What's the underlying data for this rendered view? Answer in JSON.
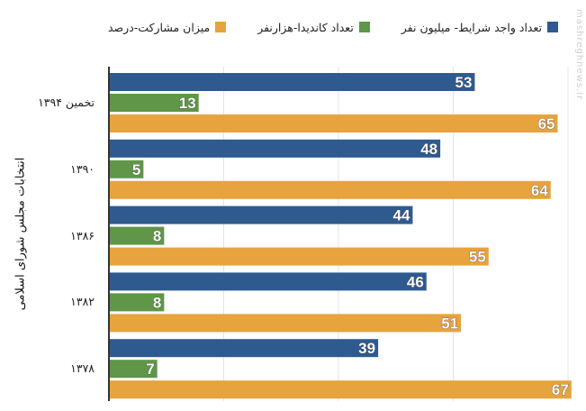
{
  "chart_data": {
    "type": "bar",
    "orientation": "horizontal",
    "title": "",
    "ylabel": "انتخابات مجلس شورای اسلامی",
    "xlabel": "",
    "categories": [
      "تخمین ۱۳۹۴",
      "۱۳۹۰",
      "۱۳۸۶",
      "۱۳۸۲",
      "۱۳۷۸"
    ],
    "series": [
      {
        "name": "تعداد واجد شرایط- میلیون نفر",
        "color": "#2f5a8f",
        "values": [
          53,
          48,
          44,
          46,
          39
        ]
      },
      {
        "name": "تعداد کاندیدا-هزارنفر",
        "color": "#5f9648",
        "values": [
          13,
          5,
          8,
          8,
          7
        ]
      },
      {
        "name": "میزان مشارکت-درصد",
        "color": "#e6a33e",
        "values": [
          65,
          64,
          55,
          51,
          67
        ]
      }
    ],
    "xlim": [
      0,
      66.5
    ],
    "grid": true,
    "legend": "top"
  },
  "watermark": "mashreghnews.ir"
}
